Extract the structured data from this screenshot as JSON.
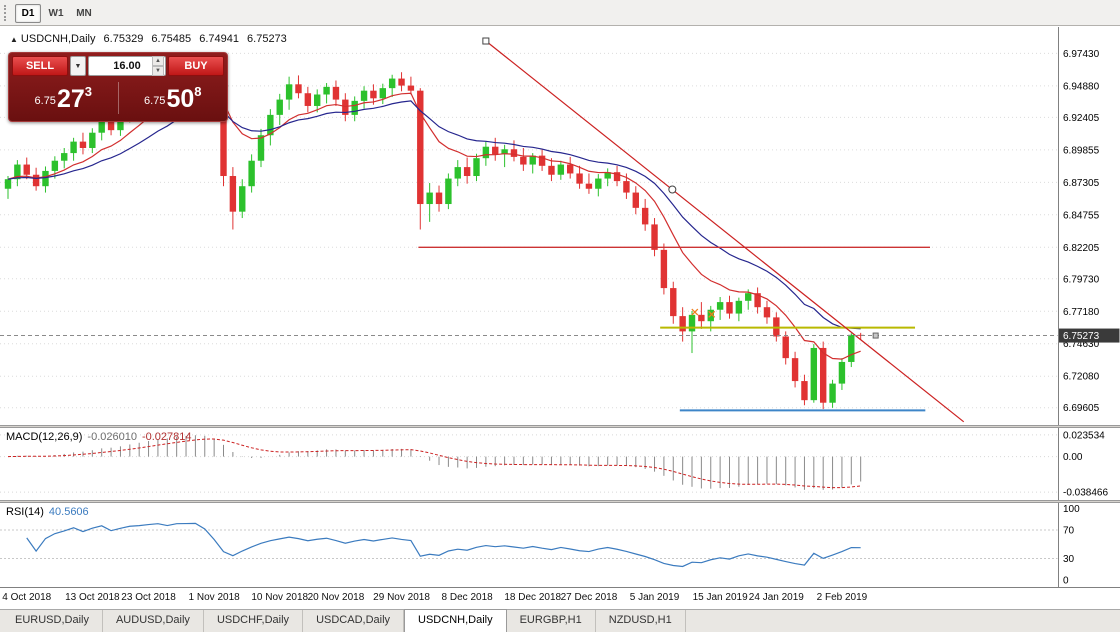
{
  "toolbar": {
    "periods": [
      {
        "label": "D1",
        "active": true
      },
      {
        "label": "W1",
        "active": false
      },
      {
        "label": "MN",
        "active": false
      }
    ]
  },
  "corner": {
    "marker": "▲",
    "title": "USDCNH,Daily",
    "open": "6.75329",
    "high": "6.75485",
    "low": "6.74941",
    "close": "6.75273"
  },
  "trade_panel": {
    "sell_label": "SELL",
    "buy_label": "BUY",
    "lot_value": "16.00",
    "sell_price_base": "6.75",
    "sell_price_pips": "27",
    "sell_price_pipette": "3",
    "buy_price_base": "6.75",
    "buy_price_pips": "50",
    "buy_price_pipette": "8"
  },
  "chart_data": {
    "type": "candlestick",
    "symbol": "USDCNH",
    "timeframe": "Daily",
    "ohlc_current": {
      "open": 6.75329,
      "high": 6.75485,
      "low": 6.74941,
      "close": 6.75273
    },
    "current_price": 6.75273,
    "current_price_label": "6.75273",
    "price_range": [
      6.6825,
      6.995
    ],
    "y_axis": [
      {
        "label": "6.97430",
        "value": 6.9743
      },
      {
        "label": "6.94880",
        "value": 6.9488
      },
      {
        "label": "6.92405",
        "value": 6.92405
      },
      {
        "label": "6.89855",
        "value": 6.89855
      },
      {
        "label": "6.87305",
        "value": 6.87305
      },
      {
        "label": "6.84755",
        "value": 6.84755
      },
      {
        "label": "6.82205",
        "value": 6.82205
      },
      {
        "label": "6.79730",
        "value": 6.7973
      },
      {
        "label": "6.77180",
        "value": 6.7718
      },
      {
        "label": "6.74630",
        "value": 6.7463
      },
      {
        "label": "6.72080",
        "value": 6.7208
      },
      {
        "label": "6.69605",
        "value": 6.69605
      }
    ],
    "x_labels": [
      {
        "text": "4 Oct 2018",
        "i": 2
      },
      {
        "text": "13 Oct 2018",
        "i": 9
      },
      {
        "text": "23 Oct 2018",
        "i": 15
      },
      {
        "text": "1 Nov 2018",
        "i": 22
      },
      {
        "text": "10 Nov 2018",
        "i": 29
      },
      {
        "text": "20 Nov 2018",
        "i": 35
      },
      {
        "text": "29 Nov 2018",
        "i": 42
      },
      {
        "text": "8 Dec 2018",
        "i": 49
      },
      {
        "text": "18 Dec 2018",
        "i": 56
      },
      {
        "text": "27 Dec 2018",
        "i": 62
      },
      {
        "text": "5 Jan 2019",
        "i": 69
      },
      {
        "text": "15 Jan 2019",
        "i": 76
      },
      {
        "text": "24 Jan 2019",
        "i": 82
      },
      {
        "text": "2 Feb 2019",
        "i": 89
      }
    ],
    "candles": [
      [
        6.868,
        6.878,
        6.86,
        6.8755
      ],
      [
        6.8755,
        6.8905,
        6.87,
        6.887
      ],
      [
        6.887,
        6.8925,
        6.8755,
        6.879
      ],
      [
        6.879,
        6.8845,
        6.8665,
        6.87
      ],
      [
        6.87,
        6.8855,
        6.865,
        6.882
      ],
      [
        6.882,
        6.8935,
        6.876,
        6.89
      ],
      [
        6.89,
        6.9,
        6.884,
        6.896
      ],
      [
        6.896,
        6.908,
        6.89,
        6.905
      ],
      [
        6.905,
        6.912,
        6.895,
        6.9
      ],
      [
        6.9,
        6.9155,
        6.896,
        6.912
      ],
      [
        6.912,
        6.926,
        6.906,
        6.923
      ],
      [
        6.923,
        6.9285,
        6.91,
        6.914
      ],
      [
        6.914,
        6.93,
        6.9095,
        6.926
      ],
      [
        6.926,
        6.942,
        6.92,
        6.939
      ],
      [
        6.939,
        6.948,
        6.932,
        6.944
      ],
      [
        6.944,
        6.956,
        6.9395,
        6.952
      ],
      [
        6.952,
        6.9625,
        6.946,
        6.959
      ],
      [
        6.959,
        6.968,
        6.95,
        6.955
      ],
      [
        6.955,
        6.972,
        6.9505,
        6.969
      ],
      [
        6.969,
        6.9735,
        6.962,
        6.97
      ],
      [
        6.97,
        6.9745,
        6.964,
        6.9715
      ],
      [
        6.9715,
        6.9745,
        6.955,
        6.96
      ],
      [
        6.96,
        6.965,
        6.925,
        6.932
      ],
      [
        6.932,
        6.938,
        6.87,
        6.878
      ],
      [
        6.878,
        6.885,
        6.836,
        6.85
      ],
      [
        6.85,
        6.8755,
        6.845,
        6.87
      ],
      [
        6.87,
        6.895,
        6.865,
        6.89
      ],
      [
        6.89,
        6.915,
        6.885,
        6.91
      ],
      [
        6.91,
        6.9305,
        6.902,
        6.926
      ],
      [
        6.926,
        6.9425,
        6.918,
        6.938
      ],
      [
        6.938,
        6.956,
        6.93,
        6.95
      ],
      [
        6.95,
        6.957,
        6.939,
        6.943
      ],
      [
        6.943,
        6.948,
        6.928,
        6.933
      ],
      [
        6.933,
        6.946,
        6.928,
        6.942
      ],
      [
        6.942,
        6.951,
        6.935,
        6.948
      ],
      [
        6.948,
        6.953,
        6.933,
        6.938
      ],
      [
        6.938,
        6.943,
        6.921,
        6.926
      ],
      [
        6.926,
        6.9405,
        6.921,
        6.937
      ],
      [
        6.937,
        6.9485,
        6.931,
        6.945
      ],
      [
        6.945,
        6.95,
        6.934,
        6.939
      ],
      [
        6.939,
        6.9505,
        6.9345,
        6.947
      ],
      [
        6.947,
        6.9575,
        6.94,
        6.9545
      ],
      [
        6.9545,
        6.9595,
        6.9445,
        6.949
      ],
      [
        6.949,
        6.956,
        6.942,
        6.945
      ],
      [
        6.945,
        6.947,
        6.836,
        6.856
      ],
      [
        6.856,
        6.8725,
        6.842,
        6.865
      ],
      [
        6.865,
        6.8705,
        6.85,
        6.856
      ],
      [
        6.856,
        6.88,
        6.852,
        6.876
      ],
      [
        6.876,
        6.8905,
        6.87,
        6.885
      ],
      [
        6.885,
        6.8925,
        6.872,
        6.878
      ],
      [
        6.878,
        6.8955,
        6.874,
        6.892
      ],
      [
        6.892,
        6.905,
        6.886,
        6.901
      ],
      [
        6.901,
        6.908,
        6.89,
        6.895
      ],
      [
        6.895,
        6.9025,
        6.885,
        6.899
      ],
      [
        6.899,
        6.906,
        6.8895,
        6.893
      ],
      [
        6.893,
        6.9,
        6.882,
        6.887
      ],
      [
        6.887,
        6.896,
        6.88,
        6.894
      ],
      [
        6.894,
        6.899,
        6.882,
        6.886
      ],
      [
        6.886,
        6.892,
        6.874,
        6.879
      ],
      [
        6.879,
        6.89,
        6.875,
        6.887
      ],
      [
        6.887,
        6.893,
        6.876,
        6.88
      ],
      [
        6.88,
        6.886,
        6.868,
        6.872
      ],
      [
        6.872,
        6.88,
        6.864,
        6.868
      ],
      [
        6.868,
        6.8795,
        6.862,
        6.876
      ],
      [
        6.876,
        6.884,
        6.87,
        6.881
      ],
      [
        6.881,
        6.886,
        6.87,
        6.874
      ],
      [
        6.874,
        6.88,
        6.86,
        6.865
      ],
      [
        6.865,
        6.87,
        6.848,
        6.853
      ],
      [
        6.853,
        6.86,
        6.835,
        6.84
      ],
      [
        6.84,
        6.845,
        6.815,
        6.82
      ],
      [
        6.82,
        6.825,
        6.785,
        6.79
      ],
      [
        6.79,
        6.795,
        6.762,
        6.768
      ],
      [
        6.768,
        6.775,
        6.748,
        6.756
      ],
      [
        6.756,
        6.772,
        6.739,
        6.769
      ],
      [
        6.769,
        6.779,
        6.758,
        6.764
      ],
      [
        6.764,
        6.776,
        6.756,
        6.773
      ],
      [
        6.773,
        6.783,
        6.765,
        6.779
      ],
      [
        6.779,
        6.784,
        6.766,
        6.77
      ],
      [
        6.77,
        6.7825,
        6.764,
        6.78
      ],
      [
        6.78,
        6.789,
        6.773,
        6.786
      ],
      [
        6.786,
        6.7905,
        6.77,
        6.775
      ],
      [
        6.775,
        6.78,
        6.762,
        6.767
      ],
      [
        6.767,
        6.771,
        6.748,
        6.752
      ],
      [
        6.752,
        6.756,
        6.73,
        6.735
      ],
      [
        6.735,
        6.74,
        6.712,
        6.717
      ],
      [
        6.717,
        6.722,
        6.698,
        6.702
      ],
      [
        6.702,
        6.746,
        6.7,
        6.743
      ],
      [
        6.743,
        6.748,
        6.695,
        6.7
      ],
      [
        6.7,
        6.718,
        6.696,
        6.715
      ],
      [
        6.715,
        6.735,
        6.71,
        6.732
      ],
      [
        6.732,
        6.7545,
        6.728,
        6.7533
      ],
      [
        6.75329,
        6.75485,
        6.74941,
        6.75273
      ]
    ],
    "colors": {
      "up": "#2cc12c",
      "down": "#e03333",
      "trendline": "#cc2222",
      "grid": "#dcdcdc",
      "bid_line": "#8a8a8a"
    },
    "moving_averages": [
      {
        "type": "ema",
        "period": 10,
        "color": "#d22f2f"
      },
      {
        "type": "ema",
        "period": 20,
        "color": "#26268e"
      }
    ],
    "trendline": {
      "i1": 51,
      "p1": 6.984,
      "i2": 102,
      "p2": 6.685
    },
    "hlines": [
      {
        "price": 6.822,
        "i1": 43.8,
        "i2": 98.4,
        "color": "#cc3333",
        "width": 1.3
      },
      {
        "price": 6.759,
        "i1": 69.6,
        "i2": 96.8,
        "color": "#b9b900",
        "width": 2
      },
      {
        "price": 6.694,
        "i1": 71.7,
        "i2": 97.9,
        "color": "#3d85c8",
        "width": 2
      }
    ],
    "markers": [
      {
        "type": "square-handle",
        "i": 51,
        "price": 6.984
      },
      {
        "type": "circle-handle",
        "i": 70.9,
        "price": 6.8674
      },
      {
        "type": "cross",
        "i": 73.3,
        "price": 6.7712,
        "color": "#ef7d1e"
      },
      {
        "type": "cross",
        "i": 75.1,
        "price": 6.7694,
        "color": "#ef7d1e"
      },
      {
        "type": "square-small",
        "i": 92.6,
        "price": 6.75273
      }
    ]
  },
  "macd": {
    "label": "MACD(12,26,9)",
    "main_value": "-0.026010",
    "signal_value": "-0.027814",
    "params": {
      "fast": 12,
      "slow": 26,
      "signal": 9
    },
    "range": [
      -0.047,
      0.031
    ],
    "axis": [
      {
        "label": "0.023534",
        "value": 0.023534
      },
      {
        "label": "0.00",
        "value": 0
      },
      {
        "label": "-0.038466",
        "value": -0.038466
      }
    ],
    "colors": {
      "histogram": "#8a8a8a",
      "signal": "#cc2222"
    }
  },
  "rsi": {
    "label": "RSI(14)",
    "value": "40.5606",
    "period": 14,
    "range": [
      -10,
      108
    ],
    "levels": [
      70,
      30
    ],
    "axis": [
      {
        "label": "100",
        "value": 100
      },
      {
        "label": "70",
        "value": 70
      },
      {
        "label": "30",
        "value": 30
      },
      {
        "label": "0",
        "value": 0
      }
    ],
    "color": "#3b7bbf"
  },
  "tabs": [
    {
      "label": "EURUSD,Daily",
      "active": false
    },
    {
      "label": "AUDUSD,Daily",
      "active": false
    },
    {
      "label": "USDCHF,Daily",
      "active": false
    },
    {
      "label": "USDCAD,Daily",
      "active": false
    },
    {
      "label": "USDCNH,Daily",
      "active": true
    },
    {
      "label": "EURGBP,H1",
      "active": false
    },
    {
      "label": "NZDUSD,H1",
      "active": false
    }
  ]
}
